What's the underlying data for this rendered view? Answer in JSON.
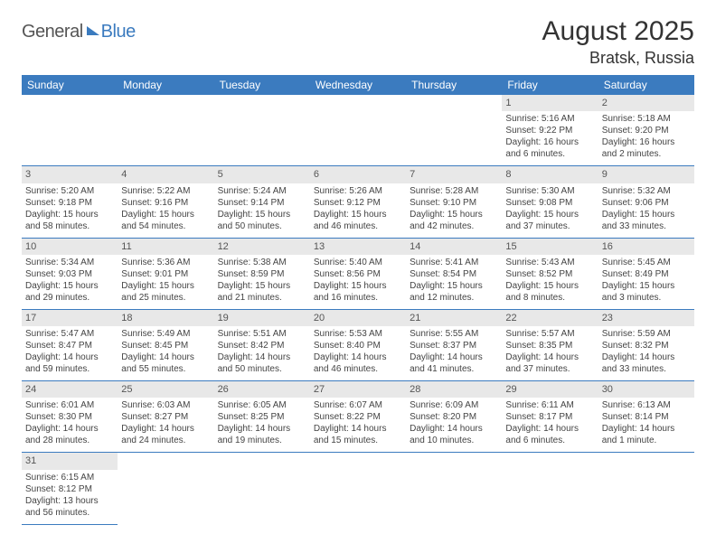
{
  "brand": {
    "part1": "General",
    "part2": "Blue"
  },
  "title": "August 2025",
  "location": "Bratsk, Russia",
  "colors": {
    "accent": "#3b7bbf",
    "dayhead_bg": "#e8e8e8",
    "text": "#333333"
  },
  "weekdays": [
    "Sunday",
    "Monday",
    "Tuesday",
    "Wednesday",
    "Thursday",
    "Friday",
    "Saturday"
  ],
  "weeks": [
    [
      null,
      null,
      null,
      null,
      null,
      {
        "n": "1",
        "sr": "Sunrise: 5:16 AM",
        "ss": "Sunset: 9:22 PM",
        "dl1": "Daylight: 16 hours",
        "dl2": "and 6 minutes."
      },
      {
        "n": "2",
        "sr": "Sunrise: 5:18 AM",
        "ss": "Sunset: 9:20 PM",
        "dl1": "Daylight: 16 hours",
        "dl2": "and 2 minutes."
      }
    ],
    [
      {
        "n": "3",
        "sr": "Sunrise: 5:20 AM",
        "ss": "Sunset: 9:18 PM",
        "dl1": "Daylight: 15 hours",
        "dl2": "and 58 minutes."
      },
      {
        "n": "4",
        "sr": "Sunrise: 5:22 AM",
        "ss": "Sunset: 9:16 PM",
        "dl1": "Daylight: 15 hours",
        "dl2": "and 54 minutes."
      },
      {
        "n": "5",
        "sr": "Sunrise: 5:24 AM",
        "ss": "Sunset: 9:14 PM",
        "dl1": "Daylight: 15 hours",
        "dl2": "and 50 minutes."
      },
      {
        "n": "6",
        "sr": "Sunrise: 5:26 AM",
        "ss": "Sunset: 9:12 PM",
        "dl1": "Daylight: 15 hours",
        "dl2": "and 46 minutes."
      },
      {
        "n": "7",
        "sr": "Sunrise: 5:28 AM",
        "ss": "Sunset: 9:10 PM",
        "dl1": "Daylight: 15 hours",
        "dl2": "and 42 minutes."
      },
      {
        "n": "8",
        "sr": "Sunrise: 5:30 AM",
        "ss": "Sunset: 9:08 PM",
        "dl1": "Daylight: 15 hours",
        "dl2": "and 37 minutes."
      },
      {
        "n": "9",
        "sr": "Sunrise: 5:32 AM",
        "ss": "Sunset: 9:06 PM",
        "dl1": "Daylight: 15 hours",
        "dl2": "and 33 minutes."
      }
    ],
    [
      {
        "n": "10",
        "sr": "Sunrise: 5:34 AM",
        "ss": "Sunset: 9:03 PM",
        "dl1": "Daylight: 15 hours",
        "dl2": "and 29 minutes."
      },
      {
        "n": "11",
        "sr": "Sunrise: 5:36 AM",
        "ss": "Sunset: 9:01 PM",
        "dl1": "Daylight: 15 hours",
        "dl2": "and 25 minutes."
      },
      {
        "n": "12",
        "sr": "Sunrise: 5:38 AM",
        "ss": "Sunset: 8:59 PM",
        "dl1": "Daylight: 15 hours",
        "dl2": "and 21 minutes."
      },
      {
        "n": "13",
        "sr": "Sunrise: 5:40 AM",
        "ss": "Sunset: 8:56 PM",
        "dl1": "Daylight: 15 hours",
        "dl2": "and 16 minutes."
      },
      {
        "n": "14",
        "sr": "Sunrise: 5:41 AM",
        "ss": "Sunset: 8:54 PM",
        "dl1": "Daylight: 15 hours",
        "dl2": "and 12 minutes."
      },
      {
        "n": "15",
        "sr": "Sunrise: 5:43 AM",
        "ss": "Sunset: 8:52 PM",
        "dl1": "Daylight: 15 hours",
        "dl2": "and 8 minutes."
      },
      {
        "n": "16",
        "sr": "Sunrise: 5:45 AM",
        "ss": "Sunset: 8:49 PM",
        "dl1": "Daylight: 15 hours",
        "dl2": "and 3 minutes."
      }
    ],
    [
      {
        "n": "17",
        "sr": "Sunrise: 5:47 AM",
        "ss": "Sunset: 8:47 PM",
        "dl1": "Daylight: 14 hours",
        "dl2": "and 59 minutes."
      },
      {
        "n": "18",
        "sr": "Sunrise: 5:49 AM",
        "ss": "Sunset: 8:45 PM",
        "dl1": "Daylight: 14 hours",
        "dl2": "and 55 minutes."
      },
      {
        "n": "19",
        "sr": "Sunrise: 5:51 AM",
        "ss": "Sunset: 8:42 PM",
        "dl1": "Daylight: 14 hours",
        "dl2": "and 50 minutes."
      },
      {
        "n": "20",
        "sr": "Sunrise: 5:53 AM",
        "ss": "Sunset: 8:40 PM",
        "dl1": "Daylight: 14 hours",
        "dl2": "and 46 minutes."
      },
      {
        "n": "21",
        "sr": "Sunrise: 5:55 AM",
        "ss": "Sunset: 8:37 PM",
        "dl1": "Daylight: 14 hours",
        "dl2": "and 41 minutes."
      },
      {
        "n": "22",
        "sr": "Sunrise: 5:57 AM",
        "ss": "Sunset: 8:35 PM",
        "dl1": "Daylight: 14 hours",
        "dl2": "and 37 minutes."
      },
      {
        "n": "23",
        "sr": "Sunrise: 5:59 AM",
        "ss": "Sunset: 8:32 PM",
        "dl1": "Daylight: 14 hours",
        "dl2": "and 33 minutes."
      }
    ],
    [
      {
        "n": "24",
        "sr": "Sunrise: 6:01 AM",
        "ss": "Sunset: 8:30 PM",
        "dl1": "Daylight: 14 hours",
        "dl2": "and 28 minutes."
      },
      {
        "n": "25",
        "sr": "Sunrise: 6:03 AM",
        "ss": "Sunset: 8:27 PM",
        "dl1": "Daylight: 14 hours",
        "dl2": "and 24 minutes."
      },
      {
        "n": "26",
        "sr": "Sunrise: 6:05 AM",
        "ss": "Sunset: 8:25 PM",
        "dl1": "Daylight: 14 hours",
        "dl2": "and 19 minutes."
      },
      {
        "n": "27",
        "sr": "Sunrise: 6:07 AM",
        "ss": "Sunset: 8:22 PM",
        "dl1": "Daylight: 14 hours",
        "dl2": "and 15 minutes."
      },
      {
        "n": "28",
        "sr": "Sunrise: 6:09 AM",
        "ss": "Sunset: 8:20 PM",
        "dl1": "Daylight: 14 hours",
        "dl2": "and 10 minutes."
      },
      {
        "n": "29",
        "sr": "Sunrise: 6:11 AM",
        "ss": "Sunset: 8:17 PM",
        "dl1": "Daylight: 14 hours",
        "dl2": "and 6 minutes."
      },
      {
        "n": "30",
        "sr": "Sunrise: 6:13 AM",
        "ss": "Sunset: 8:14 PM",
        "dl1": "Daylight: 14 hours",
        "dl2": "and 1 minute."
      }
    ],
    [
      {
        "n": "31",
        "sr": "Sunrise: 6:15 AM",
        "ss": "Sunset: 8:12 PM",
        "dl1": "Daylight: 13 hours",
        "dl2": "and 56 minutes."
      },
      null,
      null,
      null,
      null,
      null,
      null
    ]
  ]
}
